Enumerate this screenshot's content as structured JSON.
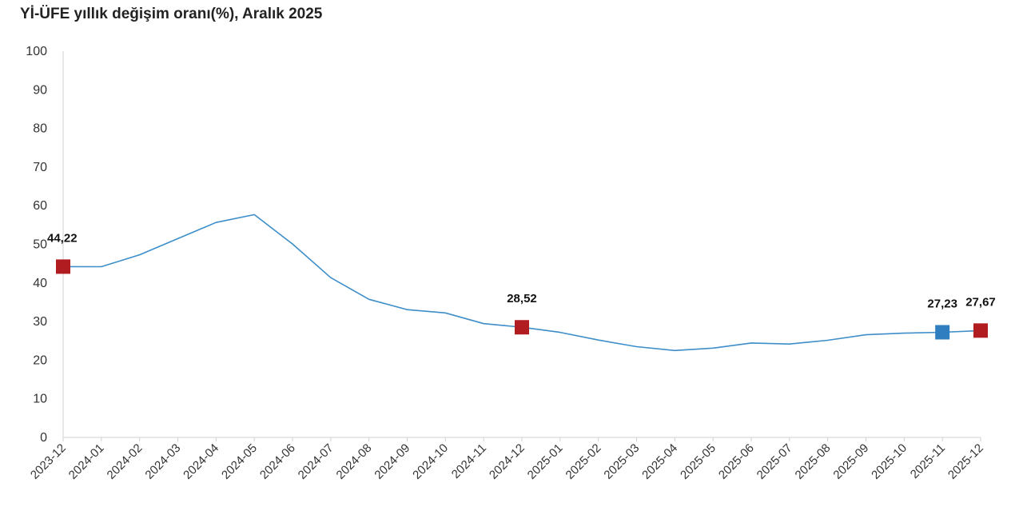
{
  "chart_data": {
    "type": "line",
    "title": "Yİ-ÜFE yıllık değişim oranı(%), Aralık 2025",
    "xlabel": "",
    "ylabel": "",
    "ylim": [
      0,
      100
    ],
    "yticks": [
      "0",
      "10",
      "20",
      "30",
      "40",
      "50",
      "60",
      "70",
      "80",
      "90",
      "100"
    ],
    "grid": false,
    "legend": "none",
    "categories": [
      "2023-12",
      "2024-01",
      "2024-02",
      "2024-03",
      "2024-04",
      "2024-05",
      "2024-06",
      "2024-07",
      "2024-08",
      "2024-09",
      "2024-10",
      "2024-11",
      "2024-12",
      "2025-01",
      "2025-02",
      "2025-03",
      "2025-04",
      "2025-05",
      "2025-06",
      "2025-07",
      "2025-08",
      "2025-09",
      "2025-10",
      "2025-11",
      "2025-12"
    ],
    "series": [
      {
        "values": [
          44.22,
          44.2,
          47.29,
          51.47,
          55.66,
          57.68,
          50.09,
          41.37,
          35.75,
          33.09,
          32.24,
          29.47,
          28.52,
          27.2,
          25.21,
          23.5,
          22.5,
          23.13,
          24.45,
          24.19,
          25.16,
          26.59,
          27.0,
          27.23,
          27.67
        ],
        "color": "#3d8ec9"
      }
    ],
    "annotations": [
      {
        "index": 0,
        "label": "44,22",
        "marker_color": "#b01c20"
      },
      {
        "index": 12,
        "label": "28,52",
        "marker_color": "#b01c20"
      },
      {
        "index": 23,
        "label": "27,23",
        "marker_color": "#2f7ec0"
      },
      {
        "index": 24,
        "label": "27,67",
        "marker_color": "#b01c20"
      }
    ],
    "axis_color": "#d0d0d0"
  }
}
